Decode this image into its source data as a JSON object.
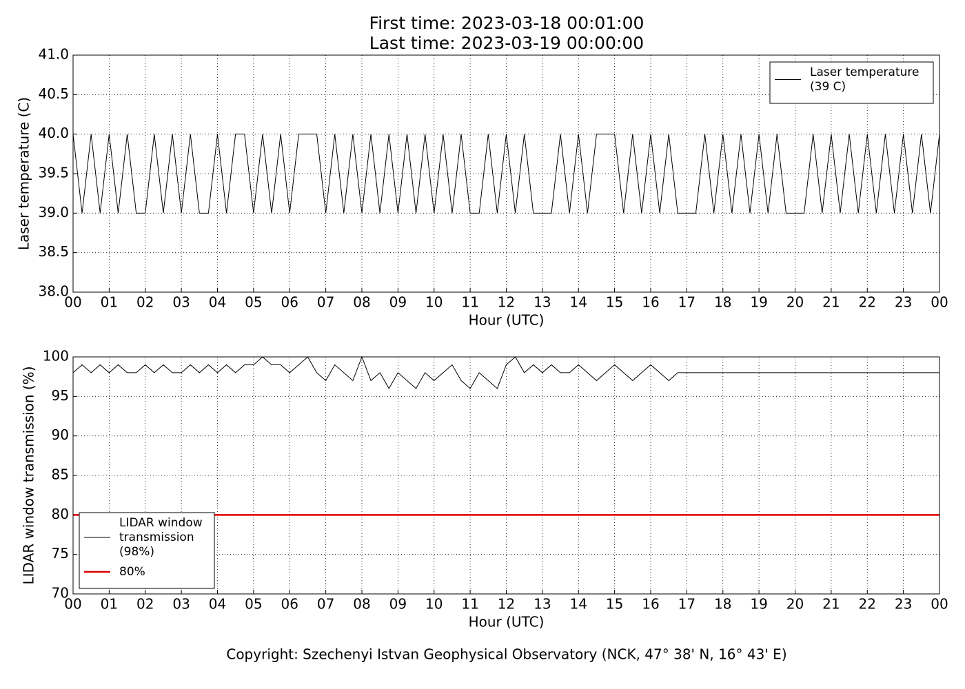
{
  "title_lines": [
    "First time: 2023-03-18 00:01:00",
    "Last time: 2023-03-19 00:00:00"
  ],
  "footer": "Copyright: Szechenyi Istvan Geophysical Observatory (NCK, 47° 38' N, 16° 43' E)",
  "chart_data": [
    {
      "type": "line",
      "x_label": "Hour (UTC)",
      "y_label": "Laser temperature (C)",
      "xlim": [
        0,
        24
      ],
      "ylim": [
        38,
        41
      ],
      "grid": true,
      "legend": "upper right",
      "xticks": [
        {
          "value": 0,
          "label": "00"
        },
        {
          "value": 1,
          "label": "01"
        },
        {
          "value": 2,
          "label": "02"
        },
        {
          "value": 3,
          "label": "03"
        },
        {
          "value": 4,
          "label": "04"
        },
        {
          "value": 5,
          "label": "05"
        },
        {
          "value": 6,
          "label": "06"
        },
        {
          "value": 7,
          "label": "07"
        },
        {
          "value": 8,
          "label": "08"
        },
        {
          "value": 9,
          "label": "09"
        },
        {
          "value": 10,
          "label": "10"
        },
        {
          "value": 11,
          "label": "11"
        },
        {
          "value": 12,
          "label": "12"
        },
        {
          "value": 13,
          "label": "13"
        },
        {
          "value": 14,
          "label": "14"
        },
        {
          "value": 15,
          "label": "15"
        },
        {
          "value": 16,
          "label": "16"
        },
        {
          "value": 17,
          "label": "17"
        },
        {
          "value": 18,
          "label": "18"
        },
        {
          "value": 19,
          "label": "19"
        },
        {
          "value": 20,
          "label": "20"
        },
        {
          "value": 21,
          "label": "21"
        },
        {
          "value": 22,
          "label": "22"
        },
        {
          "value": 23,
          "label": "23"
        },
        {
          "value": 24,
          "label": "00"
        }
      ],
      "yticks": [
        {
          "value": 38,
          "label": "38.0"
        },
        38.5,
        {
          "value": 39,
          "label": "39.0"
        },
        39.5,
        {
          "value": 40,
          "label": "40.0"
        },
        40.5,
        {
          "value": 41,
          "label": "41.0"
        }
      ],
      "series": [
        {
          "name": "Laser temperature\n(39 C)",
          "color": "#000000",
          "width": 1,
          "x": [
            0,
            0.25,
            0.5,
            0.75,
            1,
            1.25,
            1.5,
            1.75,
            2,
            2.25,
            2.5,
            2.75,
            3,
            3.25,
            3.5,
            3.75,
            4,
            4.25,
            4.5,
            4.75,
            5,
            5.25,
            5.5,
            5.75,
            6,
            6.25,
            6.5,
            6.75,
            7,
            7.25,
            7.5,
            7.75,
            8,
            8.25,
            8.5,
            8.75,
            9,
            9.25,
            9.5,
            9.75,
            10,
            10.25,
            10.5,
            10.75,
            11,
            11.25,
            11.5,
            11.75,
            12,
            12.25,
            12.5,
            12.75,
            13,
            13.25,
            13.5,
            13.75,
            14,
            14.25,
            14.5,
            14.75,
            15,
            15.25,
            15.5,
            15.75,
            16,
            16.25,
            16.5,
            16.75,
            17,
            17.25,
            17.5,
            17.75,
            18,
            18.25,
            18.5,
            18.75,
            19,
            19.25,
            19.5,
            19.75,
            20,
            20.25,
            20.5,
            20.75,
            21,
            21.25,
            21.5,
            21.75,
            22,
            22.25,
            22.5,
            22.75,
            23,
            23.25,
            23.5,
            23.75,
            24
          ],
          "values": [
            40,
            39,
            40,
            39,
            40,
            39,
            40,
            39,
            39,
            40,
            39,
            40,
            39,
            40,
            39,
            39,
            40,
            39,
            40,
            40,
            39,
            40,
            39,
            40,
            39,
            40,
            40,
            40,
            39,
            40,
            39,
            40,
            39,
            40,
            39,
            40,
            39,
            40,
            39,
            40,
            39,
            40,
            39,
            40,
            39,
            39,
            40,
            39,
            40,
            39,
            40,
            39,
            39,
            39,
            40,
            39,
            40,
            39,
            40,
            40,
            40,
            39,
            40,
            39,
            40,
            39,
            40,
            39,
            39,
            39,
            40,
            39,
            40,
            39,
            40,
            39,
            40,
            39,
            40,
            39,
            39,
            39,
            40,
            39,
            40,
            39,
            40,
            39,
            40,
            39,
            40,
            39,
            40,
            39,
            40,
            39,
            40
          ]
        }
      ]
    },
    {
      "type": "line",
      "x_label": "Hour (UTC)",
      "y_label": "LIDAR window transmission (%)",
      "xlim": [
        0,
        24
      ],
      "ylim": [
        70,
        100
      ],
      "grid": true,
      "legend": "lower left",
      "xticks": [
        {
          "value": 0,
          "label": "00"
        },
        {
          "value": 1,
          "label": "01"
        },
        {
          "value": 2,
          "label": "02"
        },
        {
          "value": 3,
          "label": "03"
        },
        {
          "value": 4,
          "label": "04"
        },
        {
          "value": 5,
          "label": "05"
        },
        {
          "value": 6,
          "label": "06"
        },
        {
          "value": 7,
          "label": "07"
        },
        {
          "value": 8,
          "label": "08"
        },
        {
          "value": 9,
          "label": "09"
        },
        {
          "value": 10,
          "label": "10"
        },
        {
          "value": 11,
          "label": "11"
        },
        {
          "value": 12,
          "label": "12"
        },
        {
          "value": 13,
          "label": "13"
        },
        {
          "value": 14,
          "label": "14"
        },
        {
          "value": 15,
          "label": "15"
        },
        {
          "value": 16,
          "label": "16"
        },
        {
          "value": 17,
          "label": "17"
        },
        {
          "value": 18,
          "label": "18"
        },
        {
          "value": 19,
          "label": "19"
        },
        {
          "value": 20,
          "label": "20"
        },
        {
          "value": 21,
          "label": "21"
        },
        {
          "value": 22,
          "label": "22"
        },
        {
          "value": 23,
          "label": "23"
        },
        {
          "value": 24,
          "label": "00"
        }
      ],
      "yticks": [
        70,
        75,
        80,
        85,
        90,
        95,
        100
      ],
      "series": [
        {
          "name": "LIDAR window\ntransmission\n(98%)",
          "color": "#000000",
          "width": 1,
          "x": [
            0,
            0.25,
            0.5,
            0.75,
            1,
            1.25,
            1.5,
            1.75,
            2,
            2.25,
            2.5,
            2.75,
            3,
            3.25,
            3.5,
            3.75,
            4,
            4.25,
            4.5,
            4.75,
            5,
            5.25,
            5.5,
            5.75,
            6,
            6.25,
            6.5,
            6.75,
            7,
            7.25,
            7.5,
            7.75,
            8,
            8.25,
            8.5,
            8.75,
            9,
            9.25,
            9.5,
            9.75,
            10,
            10.25,
            10.5,
            10.75,
            11,
            11.25,
            11.5,
            11.75,
            12,
            12.25,
            12.5,
            12.75,
            13,
            13.25,
            13.5,
            13.75,
            14,
            14.25,
            14.5,
            14.75,
            15,
            15.25,
            15.5,
            15.75,
            16,
            16.25,
            16.5,
            16.75,
            17,
            17.25,
            17.5,
            17.75,
            18,
            18.25,
            18.5,
            18.75,
            19,
            19.25,
            19.5,
            19.75,
            20,
            20.25,
            20.5,
            20.75,
            21,
            21.25,
            21.5,
            21.75,
            22,
            22.25,
            22.5,
            22.75,
            23,
            23.25,
            23.5,
            23.75,
            24
          ],
          "values": [
            98,
            99,
            98,
            99,
            98,
            99,
            98,
            98,
            99,
            98,
            99,
            98,
            98,
            99,
            98,
            99,
            98,
            99,
            98,
            99,
            99,
            100,
            99,
            99,
            98,
            99,
            100,
            98,
            97,
            99,
            98,
            97,
            100,
            97,
            98,
            96,
            98,
            97,
            96,
            98,
            97,
            98,
            99,
            97,
            96,
            98,
            97,
            96,
            99,
            100,
            98,
            99,
            98,
            99,
            98,
            98,
            99,
            98,
            97,
            98,
            99,
            98,
            97,
            98,
            99,
            98,
            97,
            98,
            98,
            98,
            98,
            98,
            98,
            98,
            98,
            98,
            98,
            98,
            98,
            98,
            98,
            98,
            98,
            98,
            98,
            98,
            98,
            98,
            98,
            98,
            98,
            98,
            98,
            98,
            98,
            98,
            98
          ]
        },
        {
          "name": "80%",
          "color": "#e00000",
          "width": 2.5,
          "x": [
            0,
            24
          ],
          "values": [
            80,
            80
          ]
        }
      ]
    }
  ]
}
